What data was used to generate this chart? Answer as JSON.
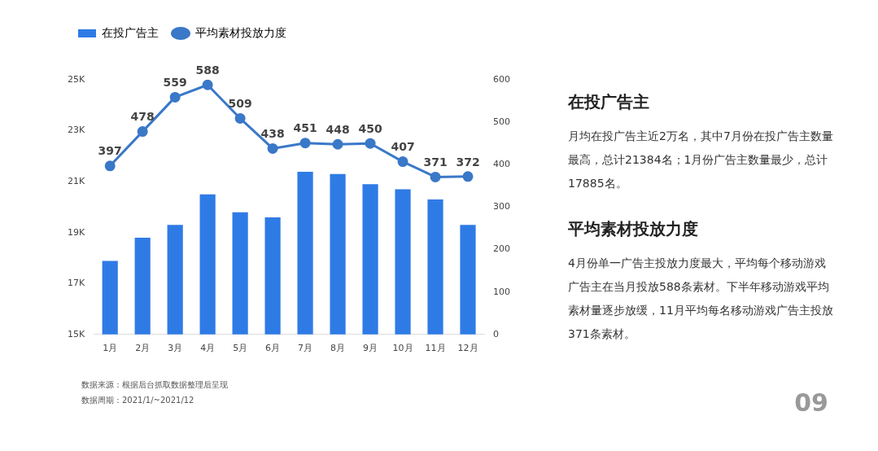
{
  "chart_data": [
    {
      "type": "bar",
      "categories": [
        "1月",
        "2月",
        "3月",
        "4月",
        "5月",
        "6月",
        "7月",
        "8月",
        "9月",
        "10月",
        "11月",
        "12月"
      ],
      "series": [
        {
          "name": "在投广告主",
          "color": "#2f7be6",
          "values": [
            17885,
            18800,
            19300,
            20500,
            19800,
            19600,
            21384,
            21300,
            20900,
            20700,
            20300,
            19300
          ]
        },
        {
          "name": "平均素材投放力度",
          "type": "line",
          "axis": "y2",
          "color": "#3a78c8",
          "values": [
            397,
            478,
            559,
            588,
            509,
            438,
            451,
            448,
            450,
            407,
            371,
            372
          ],
          "value_labels": [
            "397",
            "478",
            "559",
            "588",
            "509",
            "438",
            "451",
            "448",
            "450",
            "407",
            "371",
            "372"
          ]
        }
      ],
      "ylim": [
        15000,
        25000
      ],
      "yticks": [
        {
          "value": 15000,
          "label": "15K"
        },
        {
          "value": 17000,
          "label": "17K"
        },
        {
          "value": 19000,
          "label": "19K"
        },
        {
          "value": 21000,
          "label": "21K"
        },
        {
          "value": 23000,
          "label": "23K"
        },
        {
          "value": 25000,
          "label": "25K"
        }
      ],
      "y2lim": [
        0,
        600
      ],
      "y2ticks": [
        0,
        100,
        200,
        300,
        400,
        500,
        600
      ],
      "grid": false,
      "legend": "top left",
      "marker": "circle",
      "annotations": [
        "数据来源：根据后台抓取数据整理后呈现",
        "数据周期：2021/1/~2021/12"
      ]
    },
    {
      "type": "other",
      "annotations": [
        "在投广告主",
        "月均在投广告主近2万名，其中7月份在投广告主数量最高，总计21384名；1月份广告主数量最少，总计17885名。",
        "平均素材投放力度",
        "4月份单一广告主投放力度最大，平均每个移动游戏广告主在当月投放588条素材。下半年移动游戏平均素材量逐步放缓，11月平均每名移动游戏广告主投放371条素材。",
        "09"
      ]
    }
  ]
}
